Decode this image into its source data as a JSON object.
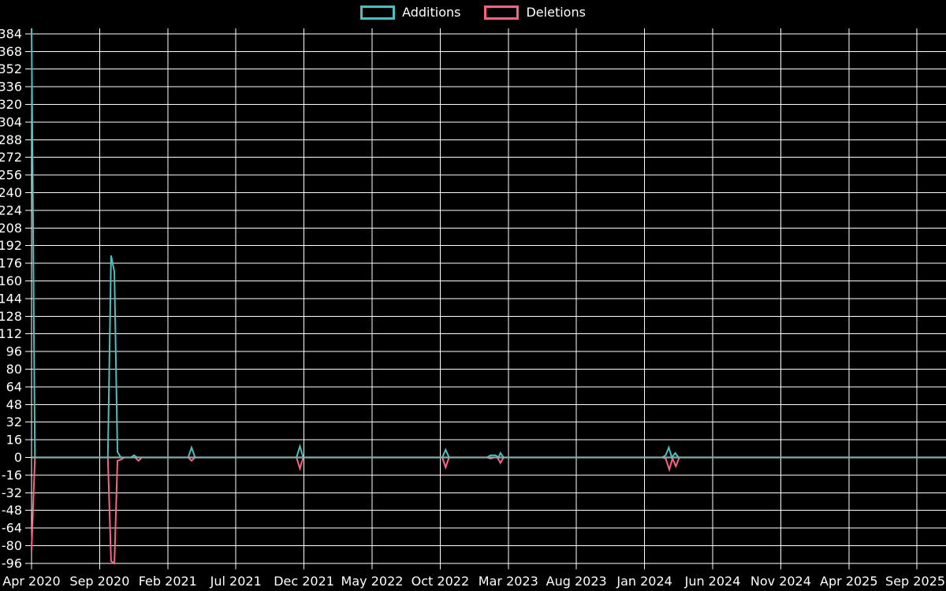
{
  "legend": {
    "items": [
      {
        "label": "Additions",
        "color": "#4bc0c0"
      },
      {
        "label": "Deletions",
        "color": "#ff6384"
      }
    ]
  },
  "colors": {
    "background": "#000000",
    "grid": "#ffffff",
    "text": "#ffffff",
    "zero_baseline": "#84aaa9",
    "additions": "#4bc0c0",
    "deletions": "#ff6384"
  },
  "chart_data": {
    "type": "line",
    "title": "",
    "xlabel": "",
    "ylabel": "",
    "x_unit": "months since Apr 2020",
    "x_tick_interval_months": 5,
    "x_tick_labels": [
      "Apr 2020",
      "Sep 2020",
      "Feb 2021",
      "Jul 2021",
      "Dec 2021",
      "May 2022",
      "Oct 2022",
      "Mar 2023",
      "Aug 2023",
      "Jan 2024",
      "Jun 2024",
      "Nov 2024",
      "Apr 2025",
      "Sep 2025"
    ],
    "x_max_months": 67.1,
    "y_ticks": [
      384,
      368,
      352,
      336,
      320,
      304,
      288,
      272,
      256,
      240,
      224,
      208,
      192,
      176,
      160,
      144,
      128,
      112,
      96,
      80,
      64,
      48,
      32,
      16,
      0,
      -16,
      -32,
      -48,
      -64,
      -80,
      -96
    ],
    "y_min": -96,
    "y_max": 389,
    "grid": true,
    "legend_position": "top",
    "series": [
      {
        "name": "Additions",
        "color": "#4bc0c0",
        "points": [
          [
            0,
            389
          ],
          [
            0.25,
            0
          ],
          [
            5.6,
            0
          ],
          [
            5.84,
            183
          ],
          [
            6.08,
            168
          ],
          [
            6.31,
            5
          ],
          [
            6.55,
            0
          ],
          [
            7.3,
            0
          ],
          [
            7.52,
            2
          ],
          [
            7.75,
            0
          ],
          [
            11.5,
            0
          ],
          [
            11.75,
            9
          ],
          [
            12,
            0
          ],
          [
            19.45,
            0
          ],
          [
            19.7,
            10
          ],
          [
            19.95,
            0
          ],
          [
            30.15,
            0
          ],
          [
            30.4,
            7
          ],
          [
            30.65,
            0
          ],
          [
            33.45,
            0
          ],
          [
            33.7,
            2
          ],
          [
            34.05,
            2
          ],
          [
            34.28,
            0
          ],
          [
            34.42,
            4
          ],
          [
            34.65,
            0
          ],
          [
            46.3,
            0
          ],
          [
            46.55,
            2
          ],
          [
            46.78,
            9
          ],
          [
            47,
            0
          ],
          [
            47.25,
            4
          ],
          [
            47.5,
            0
          ],
          [
            67.1,
            0
          ]
        ]
      },
      {
        "name": "Deletions",
        "color": "#ff6384",
        "points": [
          [
            0,
            -84
          ],
          [
            0.25,
            0
          ],
          [
            5.6,
            0
          ],
          [
            5.84,
            -94
          ],
          [
            6.08,
            -96
          ],
          [
            6.31,
            -3
          ],
          [
            6.55,
            -2
          ],
          [
            6.8,
            0
          ],
          [
            7.6,
            0
          ],
          [
            7.85,
            -3
          ],
          [
            8.1,
            0
          ],
          [
            11.5,
            0
          ],
          [
            11.75,
            -3
          ],
          [
            12,
            0
          ],
          [
            19.45,
            0
          ],
          [
            19.7,
            -10
          ],
          [
            19.95,
            0
          ],
          [
            30.15,
            0
          ],
          [
            30.4,
            -9
          ],
          [
            30.65,
            0
          ],
          [
            33.45,
            0
          ],
          [
            33.7,
            -1
          ],
          [
            33.95,
            0
          ],
          [
            34.2,
            0
          ],
          [
            34.42,
            -5
          ],
          [
            34.65,
            0
          ],
          [
            46.3,
            0
          ],
          [
            46.55,
            -1
          ],
          [
            46.82,
            -11
          ],
          [
            47.05,
            -1
          ],
          [
            47.3,
            -8
          ],
          [
            47.55,
            0
          ],
          [
            67.1,
            0
          ]
        ]
      }
    ]
  }
}
